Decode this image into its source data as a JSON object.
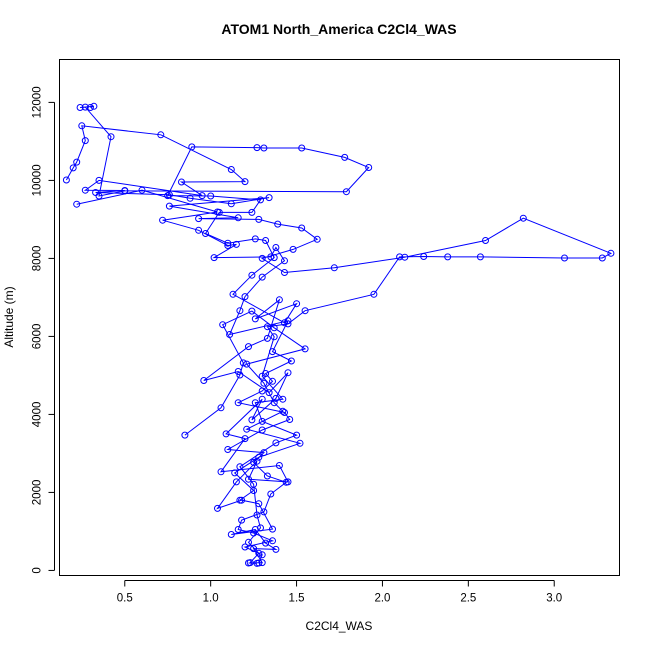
{
  "chart_data": {
    "type": "line",
    "title": "ATOM1 North_America C2Cl4_WAS",
    "xlabel": "C2Cl4_WAS",
    "ylabel": "Altitude (m)",
    "xlim": [
      0.12,
      3.38
    ],
    "ylim": [
      -130,
      13100
    ],
    "xticks": [
      0.5,
      1.0,
      1.5,
      2.0,
      2.5,
      3.0
    ],
    "xtick_labels": [
      "0.5",
      "1.0",
      "1.5",
      "2.0",
      "2.5",
      "3.0"
    ],
    "yticks": [
      0,
      2000,
      4000,
      6000,
      8000,
      10000,
      12000
    ],
    "ytick_labels": [
      "0",
      "2000",
      "4000",
      "6000",
      "8000",
      "10000",
      "12000"
    ],
    "grid": false,
    "legend": "none",
    "color": "#0000ff",
    "marker": "open-circle",
    "series": [
      {
        "points": [
          [
            1.27,
            180
          ],
          [
            1.22,
            190
          ],
          [
            1.3,
            200
          ],
          [
            1.25,
            560
          ],
          [
            1.38,
            540
          ],
          [
            1.32,
            700
          ],
          [
            1.26,
            1050
          ],
          [
            1.12,
            920
          ],
          [
            1.36,
            1060
          ],
          [
            1.28,
            1710
          ],
          [
            1.18,
            1800
          ],
          [
            1.04,
            1590
          ],
          [
            1.15,
            2270
          ],
          [
            1.27,
            2800
          ],
          [
            1.22,
            2340
          ],
          [
            1.45,
            2270
          ],
          [
            1.4,
            2690
          ],
          [
            1.06,
            2530
          ],
          [
            1.2,
            3380
          ],
          [
            1.09,
            3500
          ],
          [
            1.3,
            4390
          ],
          [
            1.24,
            3860
          ],
          [
            1.38,
            4410
          ],
          [
            1.45,
            5070
          ],
          [
            1.34,
            4560
          ],
          [
            1.16,
            5100
          ],
          [
            0.96,
            4870
          ],
          [
            1.22,
            5740
          ],
          [
            1.33,
            5950
          ],
          [
            1.4,
            6940
          ],
          [
            1.26,
            6450
          ],
          [
            1.5,
            6840
          ],
          [
            1.43,
            6350
          ],
          [
            1.13,
            7080
          ],
          [
            1.24,
            7570
          ],
          [
            1.37,
            8020
          ],
          [
            1.32,
            8460
          ],
          [
            1.26,
            8500
          ],
          [
            1.1,
            8390
          ],
          [
            0.97,
            8640
          ],
          [
            1.05,
            9180
          ],
          [
            1.24,
            9180
          ],
          [
            1.29,
            9500
          ],
          [
            1.0,
            9600
          ],
          [
            0.75,
            9610
          ],
          [
            0.89,
            10860
          ],
          [
            1.27,
            10840
          ],
          [
            1.31,
            10830
          ],
          [
            1.53,
            10830
          ],
          [
            1.78,
            10590
          ],
          [
            1.92,
            10330
          ],
          [
            1.79,
            9710
          ],
          [
            0.5,
            9730
          ],
          [
            0.35,
            9600
          ],
          [
            0.42,
            11120
          ],
          [
            0.27,
            11880
          ],
          [
            0.24,
            11870
          ],
          [
            0.32,
            11900
          ],
          [
            0.3,
            11870
          ]
        ]
      },
      {
        "points": [
          [
            0.16,
            10010
          ],
          [
            0.2,
            10320
          ],
          [
            0.22,
            10470
          ],
          [
            0.27,
            11020
          ],
          [
            0.25,
            11400
          ],
          [
            0.71,
            11170
          ],
          [
            1.12,
            10280
          ],
          [
            1.2,
            9970
          ],
          [
            0.83,
            9960
          ],
          [
            0.95,
            9610
          ],
          [
            0.35,
            10000
          ],
          [
            0.27,
            9750
          ],
          [
            0.5,
            9740
          ],
          [
            0.33,
            9690
          ],
          [
            0.76,
            9630
          ],
          [
            0.88,
            9540
          ],
          [
            1.12,
            9400
          ],
          [
            1.34,
            9560
          ],
          [
            0.76,
            9340
          ],
          [
            1.16,
            9040
          ],
          [
            0.93,
            9020
          ],
          [
            1.28,
            9000
          ],
          [
            1.39,
            8880
          ],
          [
            1.53,
            8780
          ],
          [
            1.62,
            8490
          ],
          [
            1.48,
            8230
          ],
          [
            1.3,
            8000
          ],
          [
            1.43,
            7640
          ],
          [
            1.72,
            7760
          ],
          [
            2.13,
            8030
          ],
          [
            2.6,
            8460
          ],
          [
            2.82,
            9030
          ],
          [
            3.33,
            8130
          ],
          [
            3.28,
            8010
          ],
          [
            3.06,
            8010
          ],
          [
            2.57,
            8040
          ],
          [
            2.38,
            8040
          ],
          [
            2.24,
            8050
          ],
          [
            2.1,
            8040
          ],
          [
            1.95,
            7080
          ],
          [
            1.55,
            6660
          ],
          [
            1.45,
            6320
          ],
          [
            1.33,
            6250
          ],
          [
            1.37,
            5990
          ],
          [
            1.3,
            4980
          ],
          [
            1.42,
            4390
          ],
          [
            1.26,
            4300
          ],
          [
            1.3,
            3820
          ],
          [
            1.5,
            3470
          ],
          [
            1.38,
            3270
          ],
          [
            1.17,
            2660
          ],
          [
            1.25,
            2210
          ],
          [
            1.27,
            1420
          ],
          [
            1.29,
            1090
          ],
          [
            1.22,
            720
          ],
          [
            1.28,
            440
          ],
          [
            1.23,
            200
          ]
        ]
      },
      {
        "points": [
          [
            0.22,
            9390
          ],
          [
            0.6,
            9750
          ],
          [
            1.04,
            9190
          ],
          [
            0.72,
            8980
          ],
          [
            0.93,
            8720
          ],
          [
            1.1,
            8330
          ],
          [
            1.15,
            8360
          ],
          [
            1.02,
            8020
          ],
          [
            1.35,
            8040
          ],
          [
            1.38,
            8280
          ],
          [
            1.43,
            7940
          ],
          [
            1.3,
            7520
          ],
          [
            1.2,
            7020
          ],
          [
            1.17,
            6660
          ],
          [
            1.11,
            6050
          ],
          [
            1.45,
            6400
          ],
          [
            1.36,
            5610
          ],
          [
            1.47,
            5370
          ],
          [
            1.32,
            5050
          ],
          [
            1.36,
            4850
          ],
          [
            1.3,
            4600
          ],
          [
            1.16,
            4300
          ],
          [
            1.43,
            4050
          ],
          [
            1.46,
            3870
          ],
          [
            1.3,
            3600
          ],
          [
            1.1,
            3100
          ],
          [
            1.31,
            3020
          ],
          [
            1.25,
            2770
          ],
          [
            1.33,
            2420
          ],
          [
            1.44,
            2260
          ],
          [
            1.35,
            1960
          ],
          [
            1.31,
            1500
          ],
          [
            1.18,
            1290
          ],
          [
            1.16,
            1050
          ],
          [
            1.25,
            960
          ],
          [
            1.36,
            760
          ],
          [
            1.2,
            600
          ],
          [
            1.3,
            400
          ],
          [
            1.28,
            190
          ]
        ]
      },
      {
        "points": [
          [
            0.85,
            3470
          ],
          [
            1.06,
            4170
          ],
          [
            1.17,
            5010
          ],
          [
            1.19,
            5320
          ],
          [
            1.07,
            6300
          ],
          [
            1.24,
            6650
          ],
          [
            1.37,
            6220
          ],
          [
            1.55,
            5680
          ],
          [
            1.21,
            5290
          ],
          [
            1.31,
            4800
          ],
          [
            1.37,
            4300
          ],
          [
            1.42,
            4080
          ],
          [
            1.21,
            3620
          ],
          [
            1.52,
            3260
          ],
          [
            1.28,
            2900
          ],
          [
            1.14,
            2500
          ],
          [
            1.25,
            2050
          ],
          [
            1.17,
            1800
          ]
        ]
      }
    ]
  }
}
